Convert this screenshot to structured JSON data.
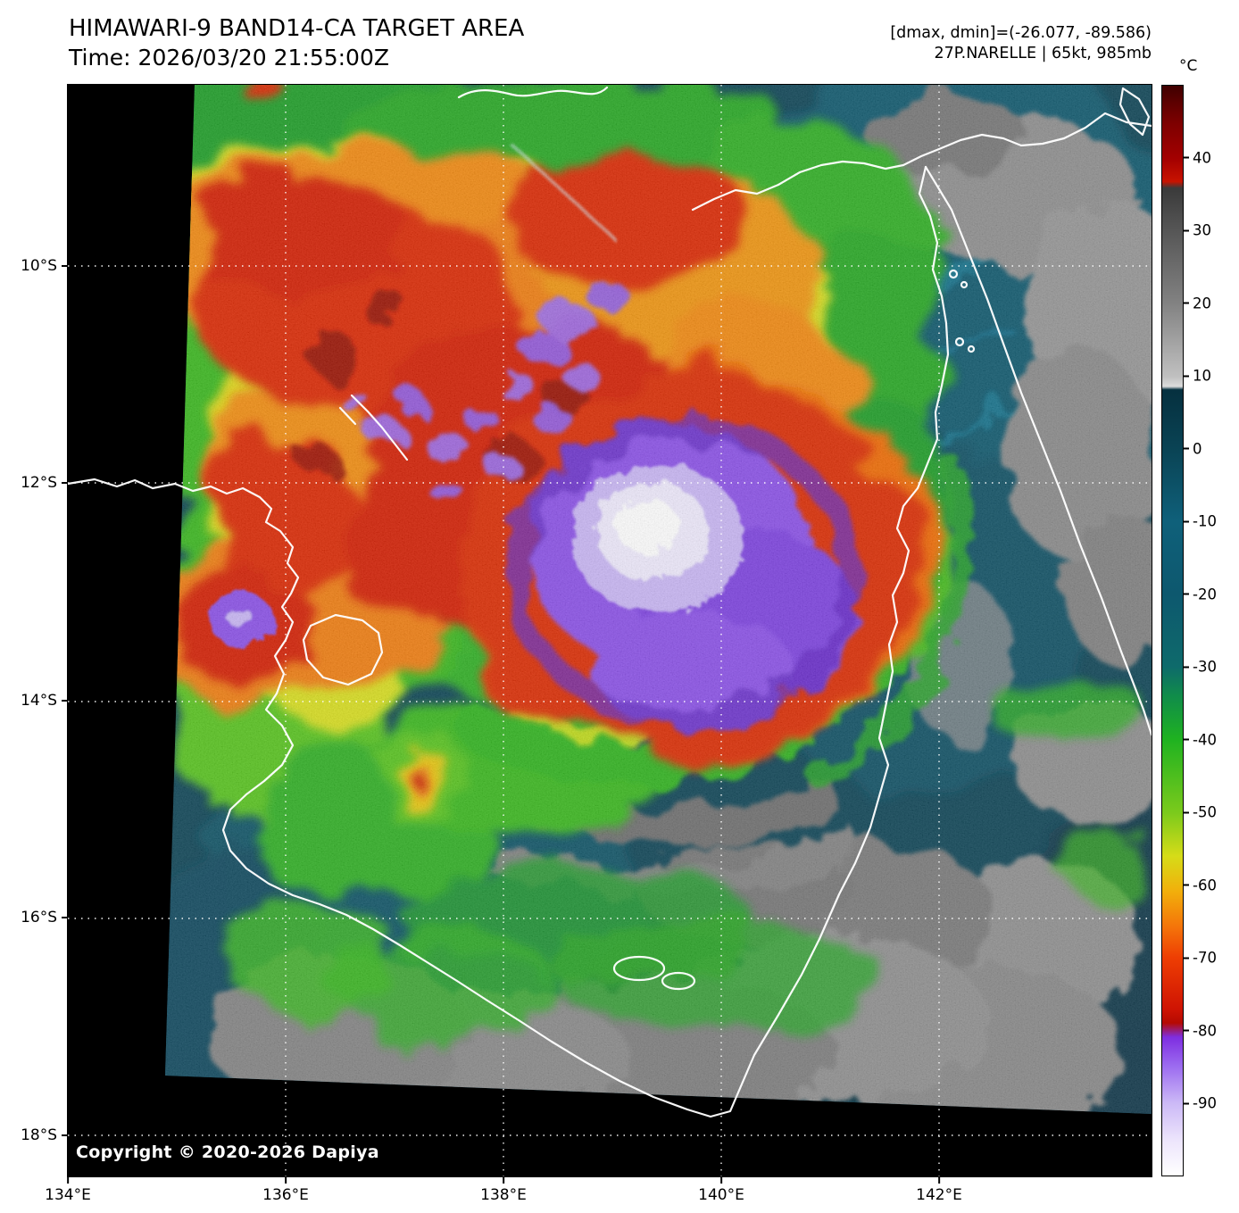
{
  "header": {
    "title": "HIMAWARI-9 BAND14-CA TARGET AREA",
    "time": "Time: 2026/03/20 21:55:00Z",
    "dmax_dmin": "[dmax, dmin]=(-26.077, -89.586)",
    "storm": "27P.NARELLE | 65kt, 985mb"
  },
  "map": {
    "copyright": "Copyright © 2020-2026 Dapiya",
    "x_axis": {
      "ticks": [
        {
          "value": 134,
          "label": "134°E"
        },
        {
          "value": 136,
          "label": "136°E"
        },
        {
          "value": 138,
          "label": "138°E"
        },
        {
          "value": 140,
          "label": "140°E"
        },
        {
          "value": 142,
          "label": "142°E"
        }
      ]
    },
    "y_axis": {
      "ticks": [
        {
          "value": -10,
          "label": "10°S"
        },
        {
          "value": -12,
          "label": "12°S"
        },
        {
          "value": -14,
          "label": "14°S"
        },
        {
          "value": -16,
          "label": "16°S"
        },
        {
          "value": -18,
          "label": "18°S"
        }
      ]
    }
  },
  "colorbar": {
    "unit": "°C",
    "domain_min": -100,
    "domain_max": 50,
    "ticks": [
      {
        "value": 40,
        "label": "40"
      },
      {
        "value": 30,
        "label": "30"
      },
      {
        "value": 20,
        "label": "20"
      },
      {
        "value": 10,
        "label": "10"
      },
      {
        "value": 0,
        "label": "0"
      },
      {
        "value": -10,
        "label": "-10"
      },
      {
        "value": -20,
        "label": "-20"
      },
      {
        "value": -30,
        "label": "-30"
      },
      {
        "value": -40,
        "label": "-40"
      },
      {
        "value": -50,
        "label": "-50"
      },
      {
        "value": -60,
        "label": "-60"
      },
      {
        "value": -70,
        "label": "-70"
      },
      {
        "value": -80,
        "label": "-80"
      },
      {
        "value": -90,
        "label": "-90"
      }
    ],
    "palette": [
      {
        "pct": 0,
        "color": "#3f0000"
      },
      {
        "pct": 1.5,
        "color": "#5c0000"
      },
      {
        "pct": 3.5,
        "color": "#7e0000"
      },
      {
        "pct": 6.7,
        "color": "#a30000"
      },
      {
        "pct": 8.8,
        "color": "#c81300"
      },
      {
        "pct": 9.4,
        "color": "#3a3a3a"
      },
      {
        "pct": 13.3,
        "color": "#565656"
      },
      {
        "pct": 20,
        "color": "#828282"
      },
      {
        "pct": 26.7,
        "color": "#c0c0c0"
      },
      {
        "pct": 27.6,
        "color": "#dcdcdc"
      },
      {
        "pct": 27.9,
        "color": "#05303f"
      },
      {
        "pct": 33.3,
        "color": "#0a4354"
      },
      {
        "pct": 40,
        "color": "#0f607a"
      },
      {
        "pct": 46.7,
        "color": "#0d586e"
      },
      {
        "pct": 53.3,
        "color": "#0e6a6b"
      },
      {
        "pct": 56,
        "color": "#108c4a"
      },
      {
        "pct": 60,
        "color": "#1fb220"
      },
      {
        "pct": 66.7,
        "color": "#7bca1c"
      },
      {
        "pct": 70.7,
        "color": "#d6dc18"
      },
      {
        "pct": 74,
        "color": "#f2ae0b"
      },
      {
        "pct": 77.3,
        "color": "#f4720a"
      },
      {
        "pct": 80,
        "color": "#ee3e03"
      },
      {
        "pct": 84.7,
        "color": "#cf1403"
      },
      {
        "pct": 86,
        "color": "#b50a02"
      },
      {
        "pct": 87.3,
        "color": "#7e2ee0"
      },
      {
        "pct": 90,
        "color": "#9c6cf0"
      },
      {
        "pct": 93.3,
        "color": "#cbb8f6"
      },
      {
        "pct": 96.7,
        "color": "#ece4fc"
      },
      {
        "pct": 100,
        "color": "#ffffff"
      }
    ]
  }
}
